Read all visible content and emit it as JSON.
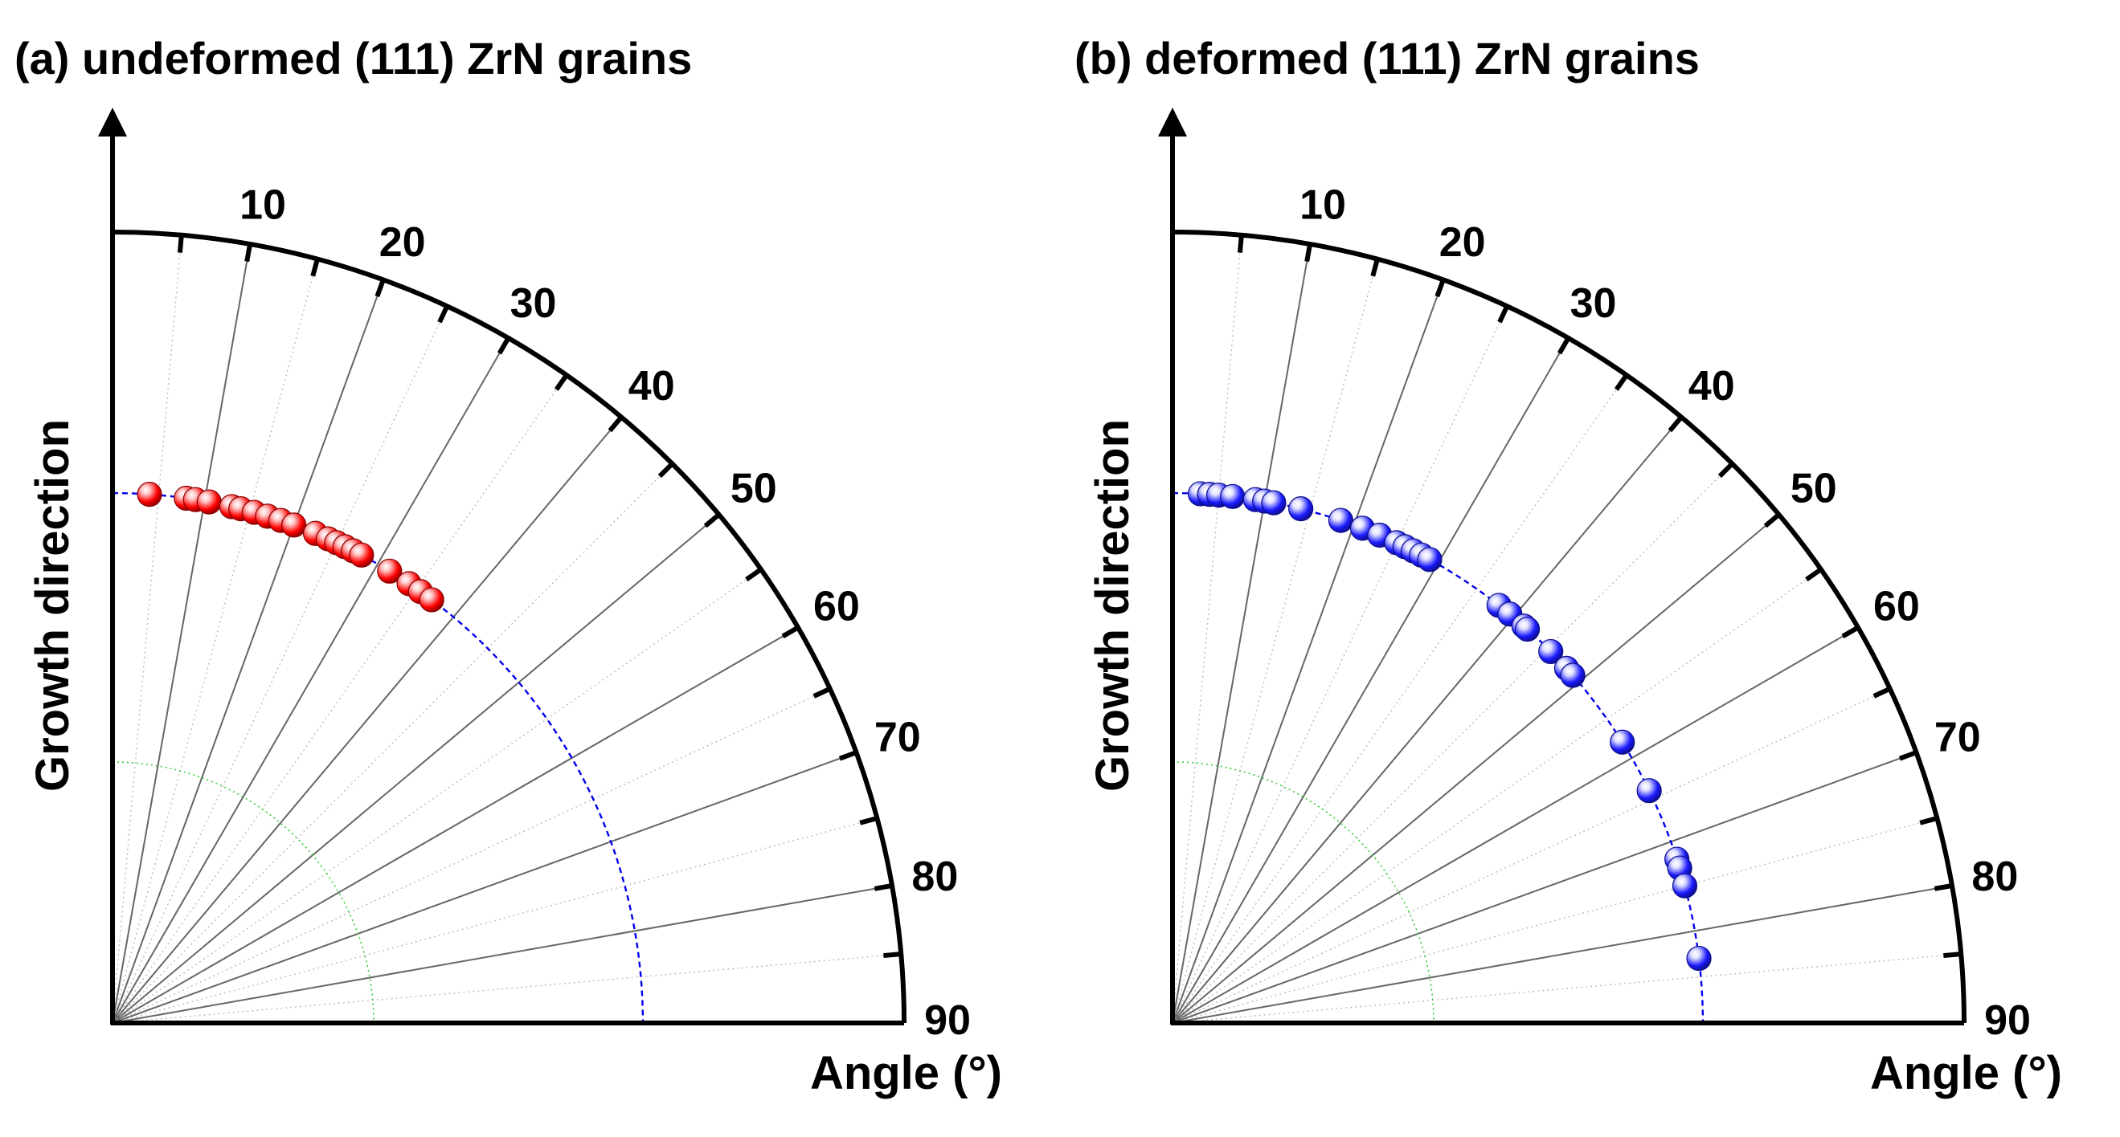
{
  "chart_data": [
    {
      "type": "scatter",
      "coordinate_system": "polar-quarter",
      "title": "(a) undeformed (111) ZrN grains",
      "ylabel": "Growth direction",
      "xlabel": "Angle (°)",
      "angle_range": [
        0,
        90
      ],
      "angle_ticks": [
        10,
        20,
        30,
        40,
        50,
        60,
        70,
        80,
        90
      ],
      "radius_range": [
        0,
        1
      ],
      "radial_lines_every_deg": 5,
      "reference_arcs": [
        {
          "radius": 0.67,
          "style": "dashed",
          "color": "#0000ee"
        },
        {
          "radius": 0.33,
          "style": "dotted",
          "color": "#33cc33"
        }
      ],
      "marker_color": "#ff0000",
      "series": [
        {
          "name": "undeformed (111) ZrN grains",
          "radius": 0.67,
          "angles": [
            4.0,
            8.0,
            9.0,
            10.5,
            13.0,
            14.0,
            15.5,
            17.0,
            18.5,
            20.0,
            22.5,
            24.0,
            25.0,
            26.0,
            27.0,
            28.0,
            31.5,
            34.0,
            35.5,
            37.0
          ]
        }
      ]
    },
    {
      "type": "scatter",
      "coordinate_system": "polar-quarter",
      "title": "(b) deformed (111) ZrN grains",
      "ylabel": "Growth direction",
      "xlabel": "Angle (°)",
      "angle_range": [
        0,
        90
      ],
      "angle_ticks": [
        10,
        20,
        30,
        40,
        50,
        60,
        70,
        80,
        90
      ],
      "radius_range": [
        0,
        1
      ],
      "radial_lines_every_deg": 5,
      "reference_arcs": [
        {
          "radius": 0.67,
          "style": "dashed",
          "color": "#0000ee"
        },
        {
          "radius": 0.33,
          "style": "dotted",
          "color": "#33cc33"
        }
      ],
      "marker_color": "#1a1aff",
      "series": [
        {
          "name": "deformed (111) ZrN grains",
          "radius": 0.67,
          "angles": [
            3.0,
            4.0,
            5.0,
            6.5,
            9.0,
            10.0,
            11.0,
            14.0,
            18.5,
            21.0,
            23.0,
            25.0,
            26.0,
            27.0,
            28.0,
            29.0,
            38.0,
            39.5,
            41.5,
            42.0,
            45.5,
            48.0,
            49.0,
            58.0,
            64.0,
            72.0,
            73.0,
            75.0,
            83.0
          ]
        }
      ]
    }
  ]
}
